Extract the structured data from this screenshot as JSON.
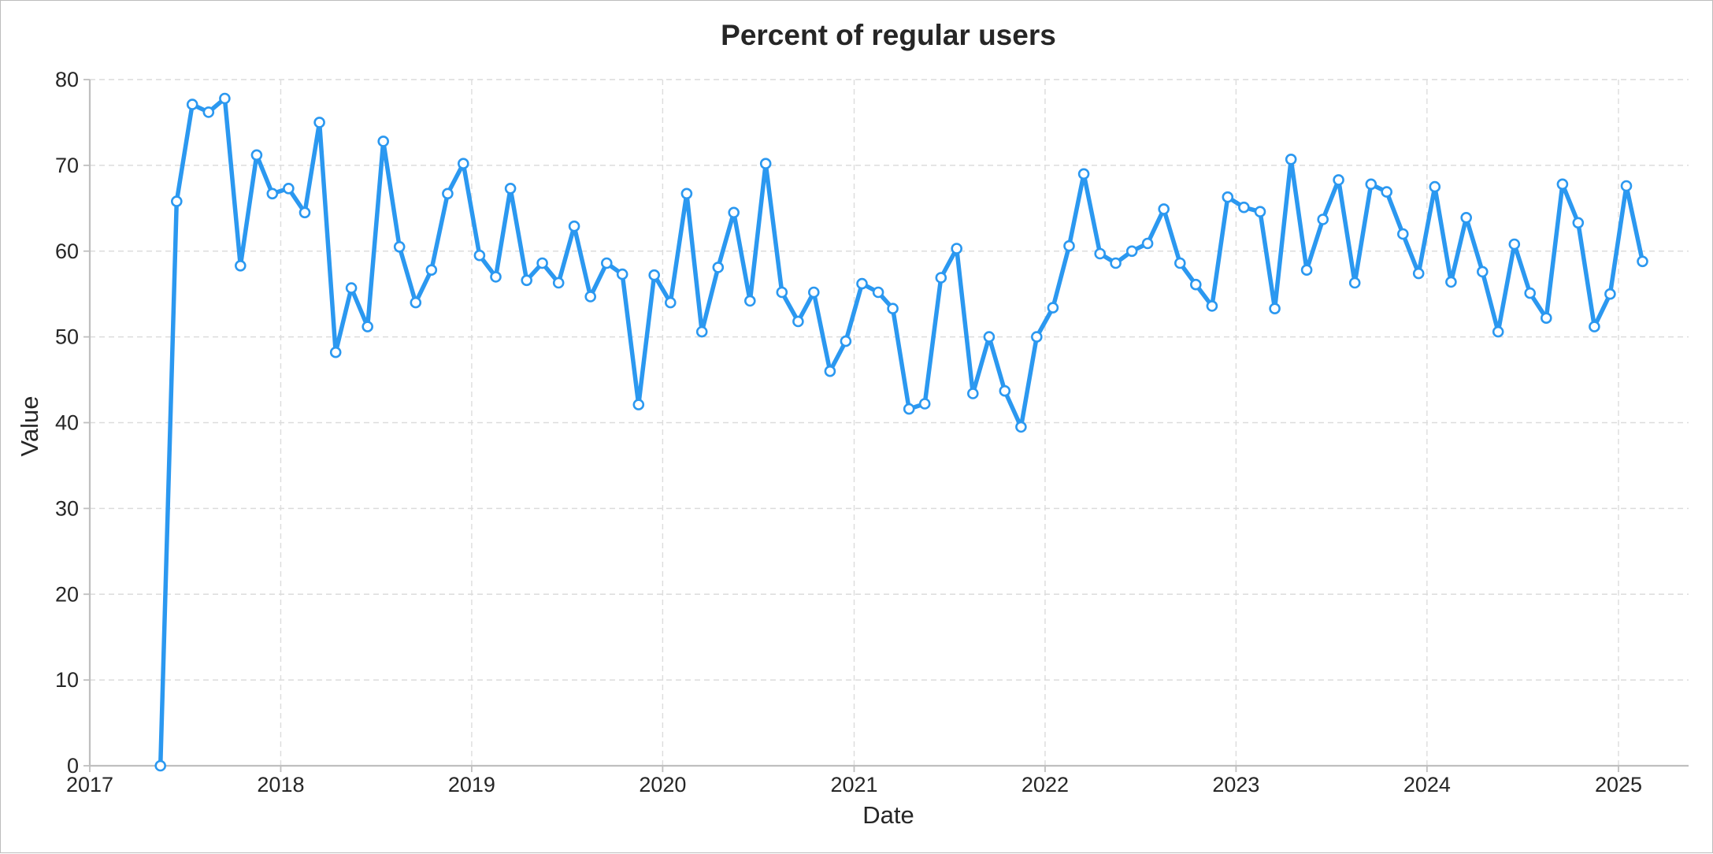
{
  "chart_data": {
    "type": "line",
    "title": "Percent of regular users",
    "xlabel": "Date",
    "ylabel": "Value",
    "ylim": [
      0,
      80
    ],
    "xlim": [
      "2017-01-01",
      "2025-05-15"
    ],
    "yticks": [
      0,
      10,
      20,
      30,
      40,
      50,
      60,
      70,
      80
    ],
    "xticks": [
      "2017",
      "2018",
      "2019",
      "2020",
      "2021",
      "2022",
      "2023",
      "2024",
      "2025"
    ],
    "grid": true,
    "legend": "none",
    "colors": {
      "line": "#2b98f0",
      "marker_face": "#ffffff"
    },
    "series": [
      {
        "x": [
          "2017-05",
          "2017-06",
          "2017-07",
          "2017-08",
          "2017-09",
          "2017-10",
          "2017-11",
          "2017-12",
          "2018-01",
          "2018-02",
          "2018-03",
          "2018-04",
          "2018-05",
          "2018-06",
          "2018-07",
          "2018-08",
          "2018-09",
          "2018-10",
          "2018-11",
          "2018-12",
          "2019-01",
          "2019-02",
          "2019-03",
          "2019-04",
          "2019-05",
          "2019-06",
          "2019-07",
          "2019-08",
          "2019-09",
          "2019-10",
          "2019-11",
          "2019-12",
          "2020-01",
          "2020-02",
          "2020-03",
          "2020-04",
          "2020-05",
          "2020-06",
          "2020-07",
          "2020-08",
          "2020-09",
          "2020-10",
          "2020-11",
          "2020-12",
          "2021-01",
          "2021-02",
          "2021-03",
          "2021-04",
          "2021-05",
          "2021-06",
          "2021-07",
          "2021-08",
          "2021-09",
          "2021-10",
          "2021-11",
          "2021-12",
          "2022-01",
          "2022-02",
          "2022-03",
          "2022-04",
          "2022-05",
          "2022-06",
          "2022-07",
          "2022-08",
          "2022-09",
          "2022-10",
          "2022-11",
          "2022-12",
          "2023-01",
          "2023-02",
          "2023-03",
          "2023-04",
          "2023-05",
          "2023-06",
          "2023-07",
          "2023-08",
          "2023-09",
          "2023-10",
          "2023-11",
          "2023-12",
          "2024-01",
          "2024-02",
          "2024-03",
          "2024-04",
          "2024-05",
          "2024-06",
          "2024-07",
          "2024-08",
          "2024-09",
          "2024-10",
          "2024-11",
          "2024-12",
          "2025-01",
          "2025-02"
        ],
        "values": [
          0,
          65.8,
          77.1,
          76.2,
          77.8,
          58.3,
          71.2,
          66.7,
          67.3,
          64.5,
          75,
          48.2,
          55.7,
          51.2,
          72.8,
          60.5,
          54,
          57.8,
          66.7,
          70.2,
          59.5,
          57,
          67.3,
          56.6,
          58.6,
          56.3,
          62.9,
          54.7,
          58.6,
          57.3,
          42.1,
          57.2,
          54,
          66.7,
          50.6,
          58.1,
          64.5,
          54.2,
          70.2,
          55.2,
          51.8,
          55.2,
          46,
          49.5,
          56.2,
          55.2,
          53.3,
          41.6,
          42.2,
          56.9,
          60.3,
          43.4,
          50,
          43.7,
          39.5,
          50,
          53.4,
          60.6,
          69,
          59.7,
          58.6,
          60,
          60.9,
          64.9,
          58.6,
          56.1,
          53.6,
          66.3,
          65.1,
          64.6,
          53.3,
          70.7,
          57.8,
          63.7,
          68.3,
          56.3,
          67.8,
          66.9,
          62,
          57.4,
          67.5,
          56.4,
          63.9,
          57.6,
          50.6,
          60.8,
          55.1,
          52.2,
          67.8,
          63.3,
          51.2,
          55,
          67.6,
          58.8
        ]
      }
    ]
  }
}
